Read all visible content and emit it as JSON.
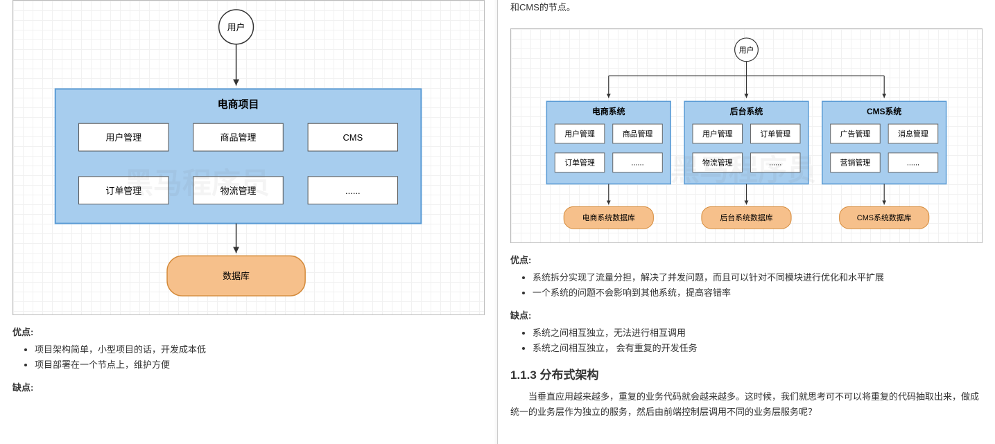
{
  "colors": {
    "blueFill": "#a7cdee",
    "blueStroke": "#5a9bd5",
    "boxFill": "#ffffff",
    "boxStroke": "#666666",
    "dbFill": "#f6c08b",
    "dbStroke": "#d48a3a",
    "lineStroke": "#333333",
    "gridBg": "#ffffff"
  },
  "left": {
    "diagram": {
      "userNode": "用户",
      "container": "电商项目",
      "modules": [
        "用户管理",
        "商品管理",
        "CMS",
        "订单管理",
        "物流管理",
        "......"
      ],
      "db": "数据库"
    },
    "advLabel": "优点:",
    "advantages": [
      "项目架构简单，小型项目的话，开发成本低",
      "项目部署在一个节点上，维护方便"
    ],
    "disLabel": "缺点:"
  },
  "right": {
    "pretext": "和CMS的节点。",
    "diagram": {
      "userNode": "用户",
      "systems": [
        {
          "title": "电商系统",
          "modules": [
            "用户管理",
            "商品管理",
            "订单管理",
            "......"
          ],
          "db": "电商系统数据库"
        },
        {
          "title": "后台系统",
          "modules": [
            "用户管理",
            "订单管理",
            "物流管理",
            "......"
          ],
          "db": "后台系统数据库"
        },
        {
          "title": "CMS系统",
          "modules": [
            "广告管理",
            "消息管理",
            "营销管理",
            "......"
          ],
          "db": "CMS系统数据库"
        }
      ]
    },
    "advLabel": "优点:",
    "advantages": [
      "系统拆分实现了流量分担，解决了并发问题，而且可以针对不同模块进行优化和水平扩展",
      "一个系统的问题不会影响到其他系统，提高容错率"
    ],
    "disLabel": "缺点:",
    "disadvantages": [
      "系统之间相互独立，无法进行相互调用",
      "系统之间相互独立， 会有重复的开发任务"
    ],
    "heading": "1.1.3 分布式架构",
    "para": "当垂直应用越来越多，重复的业务代码就会越来越多。这时候，我们就思考可不可以将重复的代码抽取出来，做成统一的业务层作为独立的服务，然后由前端控制层调用不同的业务层服务呢？"
  },
  "watermark": "黑马程序员"
}
